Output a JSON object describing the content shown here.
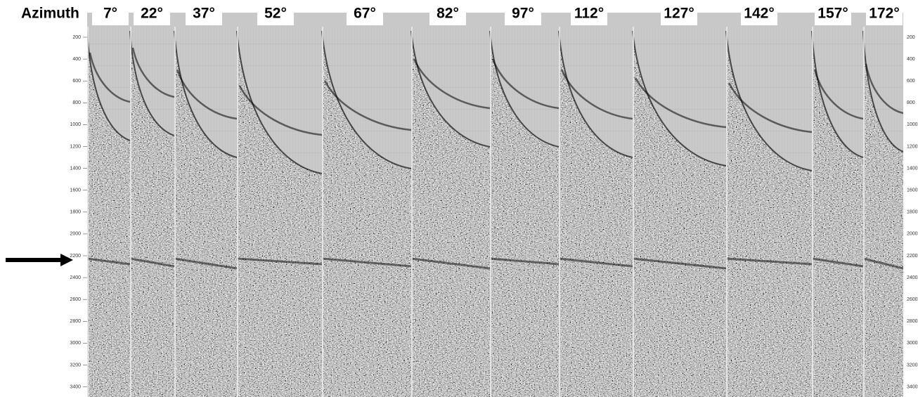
{
  "header": {
    "label": "Azimuth",
    "azimuths": [
      "7°",
      "22°",
      "37°",
      "52°",
      "67°",
      "82°",
      "97°",
      "112°",
      "127°",
      "142°",
      "157°",
      "172°"
    ]
  },
  "time_axis": {
    "ticks": [
      200,
      400,
      600,
      800,
      1000,
      1200,
      1400,
      1600,
      1800,
      2000,
      2200,
      2400,
      2600,
      2800,
      3000,
      3200,
      3400
    ]
  }
}
